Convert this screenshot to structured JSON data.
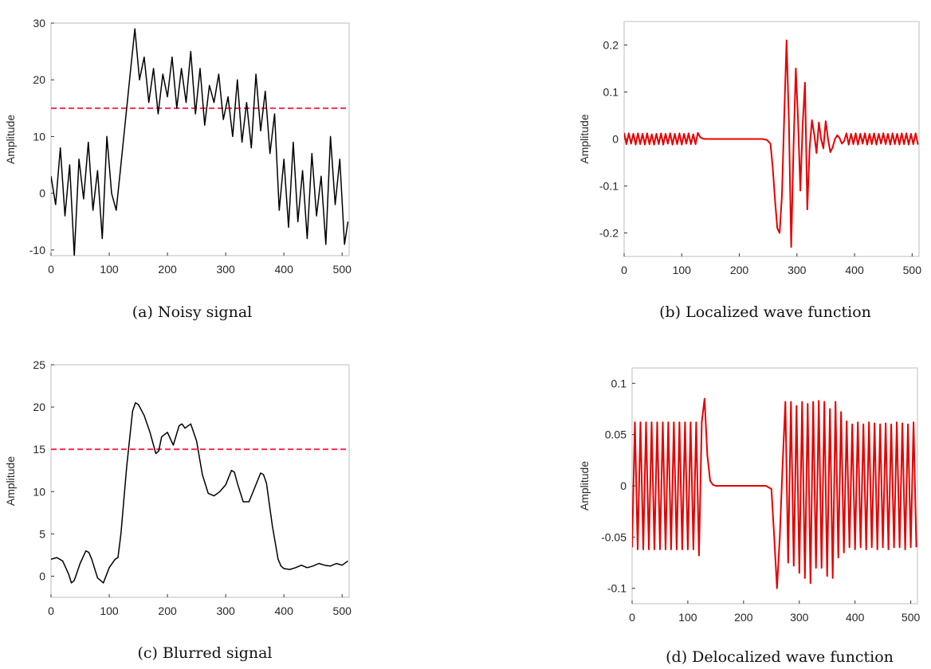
{
  "chart_data": [
    {
      "id": "a",
      "type": "line",
      "caption": "(a)  Noisy signal",
      "xlabel": "",
      "ylabel": "Amplitude",
      "xlim": [
        0,
        512
      ],
      "ylim": [
        -11,
        30
      ],
      "xticks": [
        0,
        100,
        200,
        300,
        400,
        500
      ],
      "yticks": [
        -10,
        0,
        10,
        20,
        30
      ],
      "grid": false,
      "line_color": "#000000",
      "threshold": {
        "y": 15,
        "color": "#ff2a4d",
        "style": "dashed"
      },
      "series": [
        {
          "x": [
            0,
            8,
            16,
            24,
            32,
            40,
            48,
            56,
            64,
            72,
            80,
            88,
            96,
            104,
            112,
            120,
            128,
            136,
            144,
            152,
            160,
            168,
            176,
            184,
            192,
            200,
            208,
            216,
            224,
            232,
            240,
            248,
            256,
            264,
            272,
            280,
            288,
            296,
            304,
            312,
            320,
            328,
            336,
            344,
            352,
            360,
            368,
            376,
            384,
            392,
            400,
            408,
            416,
            424,
            432,
            440,
            448,
            456,
            464,
            472,
            480,
            488,
            496,
            504,
            510
          ],
          "y": [
            3,
            -2,
            8,
            -4,
            5,
            -11,
            6,
            -1,
            9,
            -3,
            4,
            -8,
            10,
            0,
            -3,
            5,
            13,
            21,
            29,
            20,
            24,
            16,
            22,
            14,
            21,
            17,
            24,
            15,
            22,
            16,
            25,
            14,
            22,
            12,
            19,
            16,
            21,
            13,
            17,
            10,
            20,
            9,
            16,
            8,
            21,
            11,
            18,
            7,
            14,
            -3,
            6,
            -6,
            9,
            -5,
            4,
            -8,
            7,
            -4,
            3,
            -9,
            10,
            -2,
            6,
            -9,
            -5
          ]
        }
      ]
    },
    {
      "id": "b",
      "type": "line",
      "caption": "(b)  Localized wave function",
      "xlabel": "",
      "ylabel": "Amplitude",
      "xlim": [
        0,
        512
      ],
      "ylim": [
        -0.25,
        0.25
      ],
      "xticks": [
        0,
        100,
        200,
        300,
        400,
        500
      ],
      "yticks": [
        -0.2,
        -0.1,
        0,
        0.1,
        0.2
      ],
      "ytick_labels": [
        "-0.2",
        "-0.1",
        "0",
        "0.1",
        "0.2"
      ],
      "grid": false,
      "line_color": "#e60000",
      "series": [
        {
          "x": [
            0,
            4,
            8,
            12,
            16,
            20,
            24,
            28,
            32,
            36,
            40,
            44,
            48,
            52,
            56,
            60,
            64,
            68,
            72,
            76,
            80,
            84,
            88,
            92,
            96,
            100,
            104,
            108,
            112,
            116,
            120,
            124,
            128,
            132,
            136,
            140,
            150,
            160,
            170,
            180,
            190,
            200,
            210,
            220,
            230,
            240,
            248,
            254,
            258,
            262,
            266,
            270,
            274,
            278,
            282,
            286,
            290,
            294,
            298,
            302,
            306,
            310,
            314,
            318,
            322,
            326,
            330,
            334,
            338,
            342,
            346,
            350,
            354,
            358,
            362,
            366,
            370,
            374,
            378,
            382,
            386,
            390,
            394,
            398,
            402,
            406,
            410,
            414,
            418,
            422,
            426,
            430,
            434,
            438,
            442,
            446,
            450,
            454,
            458,
            462,
            466,
            470,
            474,
            478,
            482,
            486,
            490,
            494,
            498,
            502,
            506,
            510
          ],
          "y": [
            0.013,
            -0.011,
            0.012,
            -0.01,
            0.011,
            -0.012,
            0.012,
            -0.011,
            0.011,
            -0.012,
            0.012,
            -0.011,
            0.01,
            -0.012,
            0.011,
            -0.011,
            0.012,
            -0.012,
            0.011,
            -0.01,
            0.012,
            -0.012,
            0.011,
            -0.011,
            0.012,
            -0.012,
            0.011,
            -0.01,
            0.012,
            -0.011,
            0.01,
            -0.011,
            0.013,
            0.004,
            0.001,
            0,
            0,
            0,
            0,
            0,
            0,
            0,
            0,
            0,
            0,
            0,
            -0.002,
            -0.01,
            -0.06,
            -0.13,
            -0.19,
            -0.2,
            -0.12,
            0.05,
            0.21,
            0.04,
            -0.23,
            -0.02,
            0.15,
            0.04,
            -0.11,
            0.03,
            0.12,
            -0.15,
            -0.02,
            0.04,
            0.01,
            -0.03,
            0.035,
            0.0,
            -0.02,
            0.038,
            0.0,
            -0.028,
            -0.018,
            0.0,
            0.008,
            0.002,
            -0.01,
            -0.004,
            0.012,
            -0.012,
            0.011,
            -0.011,
            0.012,
            -0.012,
            0.011,
            -0.01,
            0.012,
            -0.012,
            0.011,
            -0.011,
            0.012,
            -0.012,
            0.011,
            -0.01,
            0.012,
            -0.011,
            0.011,
            -0.012,
            0.012,
            -0.011,
            0.011,
            -0.012,
            0.012,
            -0.011,
            0.012,
            -0.012,
            0.011,
            -0.011,
            0.012,
            -0.012
          ]
        }
      ]
    },
    {
      "id": "c",
      "type": "line",
      "caption": "(c)  Blurred signal",
      "xlabel": "",
      "ylabel": "Amplitude",
      "xlim": [
        0,
        512
      ],
      "ylim": [
        -2.5,
        25
      ],
      "xticks": [
        0,
        100,
        200,
        300,
        400,
        500
      ],
      "yticks": [
        0,
        5,
        10,
        15,
        20,
        25
      ],
      "grid": false,
      "line_color": "#000000",
      "threshold": {
        "y": 15,
        "color": "#ff2a4d",
        "style": "dashed"
      },
      "series": [
        {
          "x": [
            0,
            10,
            20,
            30,
            35,
            40,
            50,
            60,
            65,
            70,
            80,
            90,
            100,
            110,
            115,
            120,
            130,
            140,
            145,
            150,
            160,
            170,
            180,
            185,
            190,
            200,
            210,
            220,
            225,
            230,
            240,
            250,
            260,
            270,
            280,
            290,
            300,
            310,
            315,
            320,
            330,
            340,
            350,
            360,
            365,
            370,
            380,
            390,
            395,
            400,
            410,
            420,
            430,
            440,
            450,
            460,
            470,
            480,
            490,
            500,
            510
          ],
          "y": [
            2,
            2.2,
            1.8,
            0.3,
            -0.8,
            -0.5,
            1.5,
            3,
            2.8,
            2,
            -0.2,
            -0.8,
            1,
            2,
            2.2,
            5,
            13,
            19.5,
            20.5,
            20.3,
            19,
            17,
            14.5,
            14.8,
            16.5,
            17,
            15.5,
            17.8,
            18,
            17.5,
            18,
            16,
            12,
            9.8,
            9.5,
            10,
            10.8,
            12.5,
            12.3,
            11,
            8.8,
            8.8,
            10.5,
            12.2,
            12,
            11,
            6,
            2,
            1.2,
            0.9,
            0.8,
            1,
            1.3,
            1,
            1.2,
            1.5,
            1.3,
            1.2,
            1.5,
            1.3,
            1.8
          ]
        }
      ]
    },
    {
      "id": "d",
      "type": "line",
      "caption": "(d)  Delocalized wave function",
      "xlabel": "",
      "ylabel": "Amplitude",
      "xlim": [
        0,
        512
      ],
      "ylim": [
        -0.115,
        0.115
      ],
      "xticks": [
        0,
        100,
        200,
        300,
        400,
        500
      ],
      "yticks": [
        -0.1,
        -0.05,
        0,
        0.05,
        0.1
      ],
      "ytick_labels": [
        "-0.1",
        "-0.05",
        "0",
        "0.05",
        "0.1"
      ],
      "grid": false,
      "line_color": "#e60000",
      "series": [
        {
          "x": [
            0,
            5,
            10,
            15,
            20,
            25,
            30,
            35,
            40,
            45,
            50,
            55,
            60,
            65,
            70,
            75,
            80,
            85,
            90,
            95,
            100,
            105,
            110,
            115,
            120,
            125,
            130,
            135,
            140,
            145,
            150,
            160,
            170,
            180,
            190,
            200,
            210,
            220,
            230,
            240,
            250,
            255,
            260,
            265,
            270,
            275,
            280,
            285,
            290,
            295,
            300,
            305,
            310,
            315,
            320,
            325,
            330,
            335,
            340,
            345,
            350,
            355,
            360,
            365,
            370,
            375,
            380,
            385,
            390,
            395,
            400,
            405,
            410,
            415,
            420,
            425,
            430,
            435,
            440,
            445,
            450,
            455,
            460,
            465,
            470,
            475,
            480,
            485,
            490,
            495,
            500,
            505,
            510
          ],
          "y": [
            -0.06,
            0.062,
            -0.062,
            0.062,
            -0.062,
            0.062,
            -0.062,
            0.062,
            -0.062,
            0.062,
            -0.062,
            0.062,
            -0.062,
            0.062,
            -0.062,
            0.062,
            -0.062,
            0.062,
            -0.062,
            0.062,
            -0.062,
            0.062,
            -0.062,
            0.062,
            -0.068,
            0.062,
            0.085,
            0.03,
            0.005,
            0.001,
            0,
            0,
            0,
            0,
            0,
            0,
            0,
            0,
            0,
            0,
            -0.003,
            -0.05,
            -0.1,
            -0.05,
            0.02,
            0.082,
            -0.075,
            0.082,
            -0.078,
            0.078,
            -0.085,
            0.082,
            -0.09,
            0.08,
            -0.095,
            0.082,
            -0.08,
            0.083,
            -0.08,
            0.082,
            -0.088,
            0.075,
            -0.09,
            0.082,
            -0.07,
            0.072,
            -0.065,
            0.063,
            -0.06,
            0.06,
            -0.062,
            0.062,
            -0.06,
            0.06,
            -0.062,
            0.062,
            -0.06,
            0.061,
            -0.062,
            0.06,
            -0.06,
            0.061,
            -0.062,
            0.06,
            -0.06,
            0.062,
            -0.06,
            0.061,
            -0.062,
            0.06,
            -0.06,
            0.062,
            -0.06
          ]
        }
      ]
    }
  ]
}
